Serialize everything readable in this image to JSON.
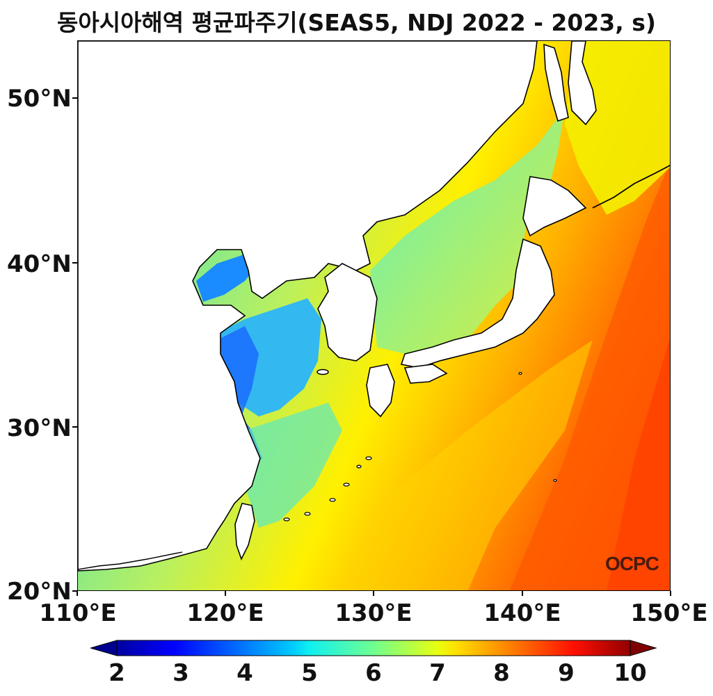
{
  "title": "동아시아해역 평균파주기(SEAS5, NDJ 2022 - 2023, s)",
  "axes": {
    "y_ticks": [
      "20°N",
      "30°N",
      "40°N",
      "50°N"
    ],
    "x_ticks": [
      "110°E",
      "120°E",
      "130°E",
      "140°E",
      "150°E"
    ]
  },
  "colorbar": {
    "ticks": [
      "2",
      "3",
      "4",
      "5",
      "6",
      "7",
      "8",
      "9",
      "10"
    ],
    "range": [
      2,
      10
    ],
    "colormap": "jet",
    "extend": "both"
  },
  "logo": "OCPC",
  "map": {
    "lon_range": [
      110,
      150
    ],
    "lat_range": [
      20,
      53.5
    ],
    "variable": "mean wave period",
    "units": "s",
    "land_color": "#ffffff",
    "coastline_color": "#000000",
    "regional_values": {
      "bohai_yellow_sea": 4.5,
      "east_china_sea": 6.5,
      "east_sea": 6.8,
      "north_pacific_east": 9.2
    }
  }
}
